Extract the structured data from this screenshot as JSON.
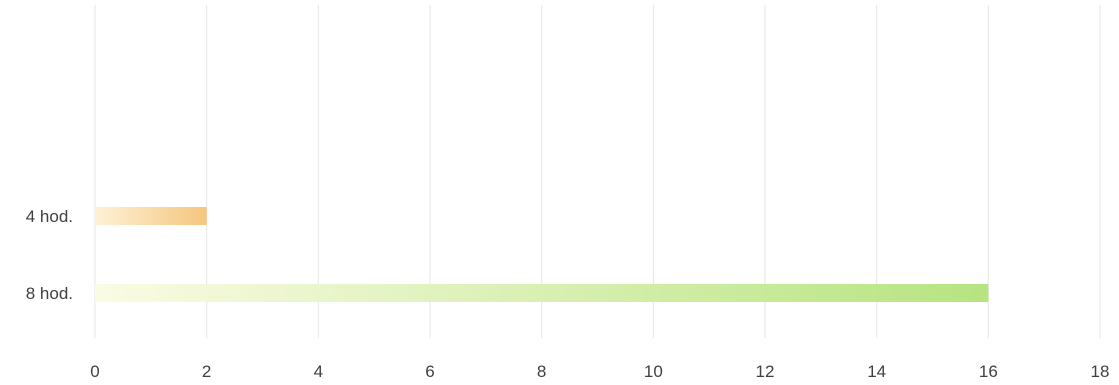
{
  "chart_data": {
    "type": "bar",
    "orientation": "horizontal",
    "categories": [
      "4 hod.",
      "8 hod."
    ],
    "values": [
      2,
      16
    ],
    "colors": [
      {
        "from": "#fdf1d6",
        "to": "#f5c67e"
      },
      {
        "from": "#fbfbe4",
        "to": "#b6e480"
      }
    ],
    "xlim": [
      0,
      18
    ],
    "xticks": [
      0,
      2,
      4,
      6,
      8,
      10,
      12,
      14,
      16,
      18
    ],
    "grid": true,
    "title": "",
    "xlabel": "",
    "ylabel": ""
  }
}
